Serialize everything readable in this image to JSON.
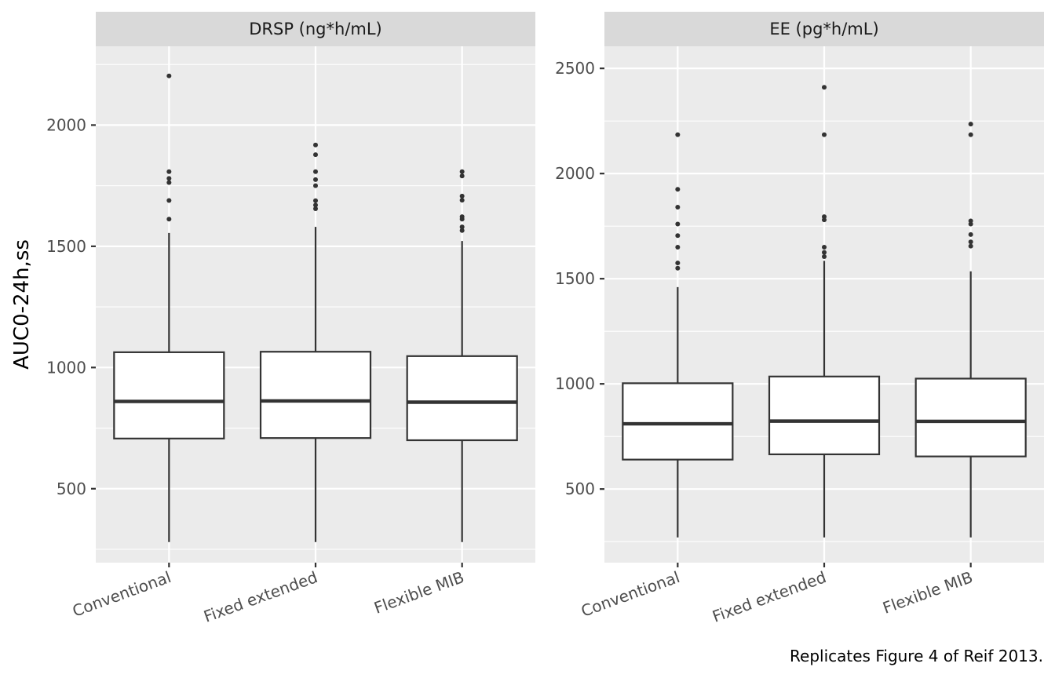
{
  "chart_data": {
    "type": "boxplot",
    "ylabel": "AUC0-24h,ss",
    "caption": "Replicates Figure 4 of Reif 2013.",
    "categories": [
      "Conventional",
      "Fixed extended",
      "Flexible MIB"
    ],
    "panels": [
      {
        "title": "DRSP (ng*h/mL)",
        "ylim": [
          195,
          2325
        ],
        "yticks": [
          500,
          1000,
          1500,
          2000
        ],
        "boxes": [
          {
            "category": "Conventional",
            "whisker_low": 280,
            "q1": 707,
            "median": 860,
            "q3": 1063,
            "whisker_high": 1555,
            "outliers": [
              1612,
              1689,
              1763,
              1780,
              1808,
              2203
            ]
          },
          {
            "category": "Fixed extended",
            "whisker_low": 280,
            "q1": 709,
            "median": 862,
            "q3": 1065,
            "whisker_high": 1580,
            "outliers": [
              1655,
              1670,
              1688,
              1750,
              1775,
              1808,
              1878,
              1918
            ]
          },
          {
            "category": "Flexible MIB",
            "whisker_low": 280,
            "q1": 700,
            "median": 857,
            "q3": 1047,
            "whisker_high": 1522,
            "outliers": [
              1565,
              1580,
              1612,
              1622,
              1690,
              1707,
              1790,
              1808
            ]
          }
        ]
      },
      {
        "title": "EE (pg*h/mL)",
        "ylim": [
          150,
          2605
        ],
        "yticks": [
          500,
          1000,
          1500,
          2000,
          2500
        ],
        "boxes": [
          {
            "category": "Conventional",
            "whisker_low": 270,
            "q1": 640,
            "median": 810,
            "q3": 1003,
            "whisker_high": 1460,
            "outliers": [
              1550,
              1575,
              1650,
              1705,
              1760,
              1840,
              1925,
              2185
            ]
          },
          {
            "category": "Fixed extended",
            "whisker_low": 270,
            "q1": 665,
            "median": 823,
            "q3": 1035,
            "whisker_high": 1585,
            "outliers": [
              1605,
              1625,
              1650,
              1780,
              1795,
              2185,
              2410
            ]
          },
          {
            "category": "Flexible MIB",
            "whisker_low": 270,
            "q1": 655,
            "median": 822,
            "q3": 1025,
            "whisker_high": 1535,
            "outliers": [
              1655,
              1675,
              1710,
              1760,
              1775,
              2185,
              2235
            ]
          }
        ]
      }
    ],
    "colors": {
      "panel_background": "#ebebeb",
      "strip_background": "#d9d9d9",
      "grid": "#ffffff",
      "box_fill": "#ffffff",
      "box_line": "#333333"
    },
    "grid": true
  }
}
